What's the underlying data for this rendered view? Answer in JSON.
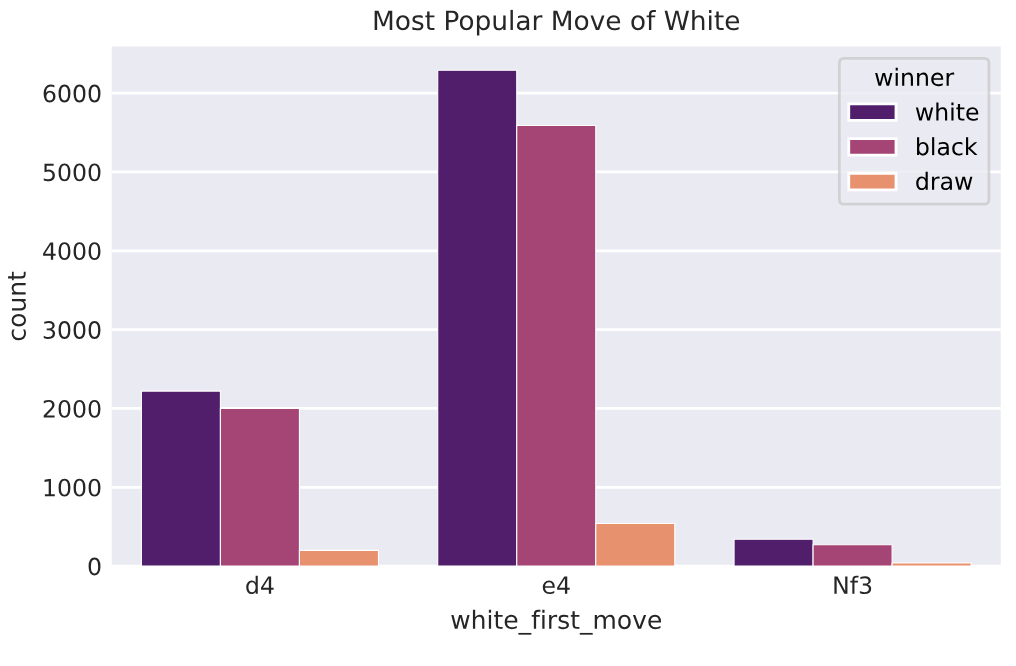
{
  "chart_data": {
    "type": "bar",
    "title": "Most Popular Move of White",
    "xlabel": "white_first_move",
    "ylabel": "count",
    "legend_title": "winner",
    "categories": [
      "d4",
      "e4",
      "Nf3"
    ],
    "series": [
      {
        "name": "white",
        "color": "#511e6b",
        "values": [
          2220,
          6290,
          340
        ]
      },
      {
        "name": "black",
        "color": "#a54575",
        "values": [
          2000,
          5590,
          270
        ]
      },
      {
        "name": "draw",
        "color": "#e8916e",
        "values": [
          200,
          540,
          40
        ]
      }
    ],
    "ylim": [
      0,
      6590
    ],
    "yticks": [
      0,
      1000,
      2000,
      3000,
      4000,
      5000,
      6000
    ],
    "grid": "y",
    "legend": "top right"
  }
}
